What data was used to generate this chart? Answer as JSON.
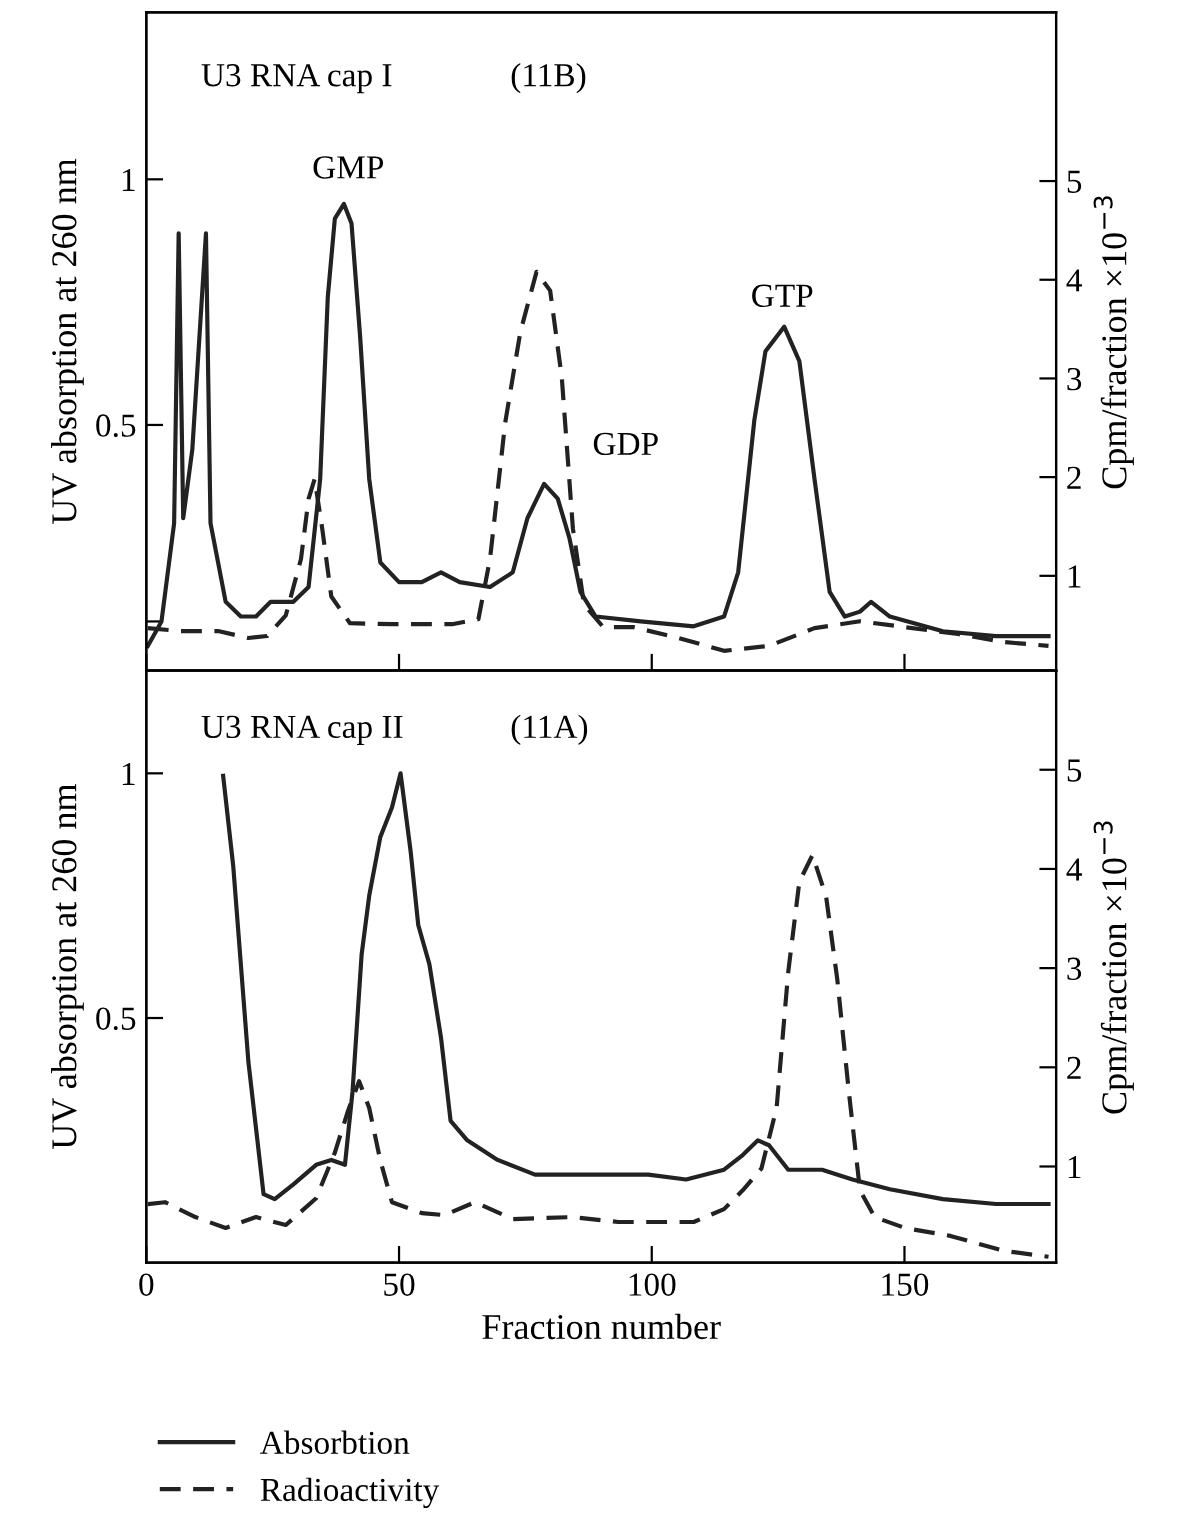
{
  "chart_data": [
    {
      "type": "line",
      "ylabel": "UV absorption at 260 nm",
      "y2label": "Cpm/fraction ×10$^{−3}$",
      "annotations": [
        "U3 RNA cap I",
        "(11B)",
        "GMP",
        "GDP",
        "GTP"
      ],
      "xlim": [
        0,
        180
      ],
      "xticks": [
        0,
        50,
        100,
        150
      ],
      "ylim": [
        0,
        1.34
      ],
      "yticks": [
        {
          "value": 0.1,
          "label": null
        },
        0.5,
        1
      ],
      "y2lim": [
        0.04,
        6.71
      ],
      "y2ticks": [
        1,
        2,
        3,
        4,
        5
      ],
      "tick_labels": "y",
      "grid": false,
      "legend": false,
      "series": [
        {
          "color": "#222222",
          "line_style": "solid",
          "x": [
            0.3,
            3,
            5.5,
            6.4,
            7.3,
            9.1,
            11.8,
            12.7,
            15.7,
            18.7,
            21.7,
            24.6,
            29.1,
            32.1,
            34.4,
            35.9,
            37.3,
            39.1,
            40.6,
            42.3,
            44.1,
            46.3,
            50,
            54.5,
            58.3,
            62,
            68,
            72.5,
            75.4,
            78.7,
            81.4,
            83.7,
            85.9,
            88.9,
            97.8,
            108.3,
            114.3,
            117.1,
            120.3,
            122.5,
            126.2,
            129.2,
            132.2,
            135.2,
            138.2,
            141.2,
            143.4,
            147.1,
            157.6,
            168.1,
            178.5
          ],
          "values": [
            0.05,
            0.1,
            0.3,
            0.89,
            0.31,
            0.45,
            0.89,
            0.3,
            0.14,
            0.11,
            0.11,
            0.14,
            0.14,
            0.17,
            0.39,
            0.76,
            0.92,
            0.95,
            0.91,
            0.68,
            0.39,
            0.22,
            0.18,
            0.18,
            0.2,
            0.18,
            0.17,
            0.2,
            0.31,
            0.38,
            0.35,
            0.27,
            0.16,
            0.11,
            0.1,
            0.09,
            0.11,
            0.2,
            0.51,
            0.65,
            0.7,
            0.63,
            0.39,
            0.16,
            0.11,
            0.12,
            0.14,
            0.11,
            0.08,
            0.07,
            0.07
          ]
        },
        {
          "color": "#222222",
          "line_style": "dashed",
          "axis": "y2",
          "x": [
            0.3,
            6.7,
            14.2,
            20.2,
            23.9,
            27.6,
            30.6,
            32.1,
            33.3,
            34.8,
            36.6,
            40.3,
            48.6,
            60.5,
            65.7,
            68,
            71,
            74,
            77.2,
            79.9,
            82.2,
            84.4,
            86.6,
            90.4,
            96.4,
            105.3,
            114.3,
            123.2,
            132.2,
            141.2,
            150.1,
            160.6,
            169.6,
            178.5
          ],
          "values": [
            0.47,
            0.44,
            0.44,
            0.37,
            0.39,
            0.6,
            1.17,
            1.78,
            1.98,
            1.48,
            0.79,
            0.52,
            0.51,
            0.51,
            0.56,
            1.17,
            2.55,
            3.47,
            4.08,
            3.89,
            3.01,
            1.48,
            0.71,
            0.48,
            0.48,
            0.37,
            0.24,
            0.29,
            0.47,
            0.54,
            0.48,
            0.41,
            0.33,
            0.29
          ]
        }
      ]
    },
    {
      "type": "line",
      "xlabel": "Fraction number",
      "ylabel": "UV absorption at 260 nm",
      "y2label": "Cpm/fraction ×10$^{−3}$",
      "annotations": [
        "U3 RNA cap II",
        "(11A)"
      ],
      "xlim": [
        0,
        180
      ],
      "xticks": [
        0,
        50,
        100,
        150
      ],
      "ylim": [
        0,
        1.21
      ],
      "yticks": [
        0.5,
        1
      ],
      "y2lim": [
        0.03,
        6.0
      ],
      "y2ticks": [
        1,
        2,
        3,
        4,
        5
      ],
      "grid": false,
      "legend": "bottom",
      "series": [
        {
          "name": "Absorbtion",
          "color": "#222222",
          "line_style": "solid",
          "x": [
            15.2,
            17.2,
            20.2,
            23.2,
            25.4,
            29.1,
            33.6,
            36.6,
            39.3,
            40.8,
            42.6,
            44.1,
            46.3,
            48.6,
            50.3,
            52.3,
            53.8,
            56,
            58.3,
            60.2,
            63.5,
            69.5,
            76.9,
            84.4,
            93.4,
            99.3,
            106.8,
            114.3,
            118,
            121,
            123.2,
            127,
            133.7,
            139.7,
            147.1,
            157.6,
            168.1,
            178.5
          ],
          "values": [
            0.995,
            0.81,
            0.41,
            0.14,
            0.13,
            0.16,
            0.2,
            0.21,
            0.2,
            0.35,
            0.63,
            0.75,
            0.87,
            0.93,
            1.0,
            0.84,
            0.69,
            0.61,
            0.46,
            0.29,
            0.25,
            0.21,
            0.18,
            0.18,
            0.18,
            0.18,
            0.17,
            0.19,
            0.22,
            0.25,
            0.24,
            0.19,
            0.19,
            0.17,
            0.15,
            0.13,
            0.12,
            0.12
          ]
        },
        {
          "name": "Radioactivity",
          "color": "#222222",
          "line_style": "dashed",
          "axis": "y2",
          "x": [
            0.3,
            3.7,
            9.7,
            15.7,
            21.7,
            27.6,
            33.6,
            37.3,
            39.9,
            42.1,
            44.1,
            46.3,
            48.6,
            54.5,
            59,
            65,
            72.5,
            84.4,
            93.4,
            108.3,
            114.3,
            118,
            121.7,
            124.7,
            127,
            129.2,
            131.8,
            134.5,
            136.7,
            139,
            141.2,
            144.1,
            150.1,
            159.1,
            169.6,
            178.5
          ],
          "values": [
            0.62,
            0.64,
            0.49,
            0.38,
            0.49,
            0.41,
            0.68,
            1.14,
            1.56,
            1.86,
            1.59,
            1.06,
            0.64,
            0.53,
            0.51,
            0.64,
            0.47,
            0.49,
            0.44,
            0.44,
            0.57,
            0.76,
            0.98,
            1.59,
            2.96,
            3.87,
            4.14,
            3.72,
            2.89,
            1.75,
            0.76,
            0.49,
            0.38,
            0.3,
            0.15,
            0.09
          ]
        }
      ]
    }
  ]
}
